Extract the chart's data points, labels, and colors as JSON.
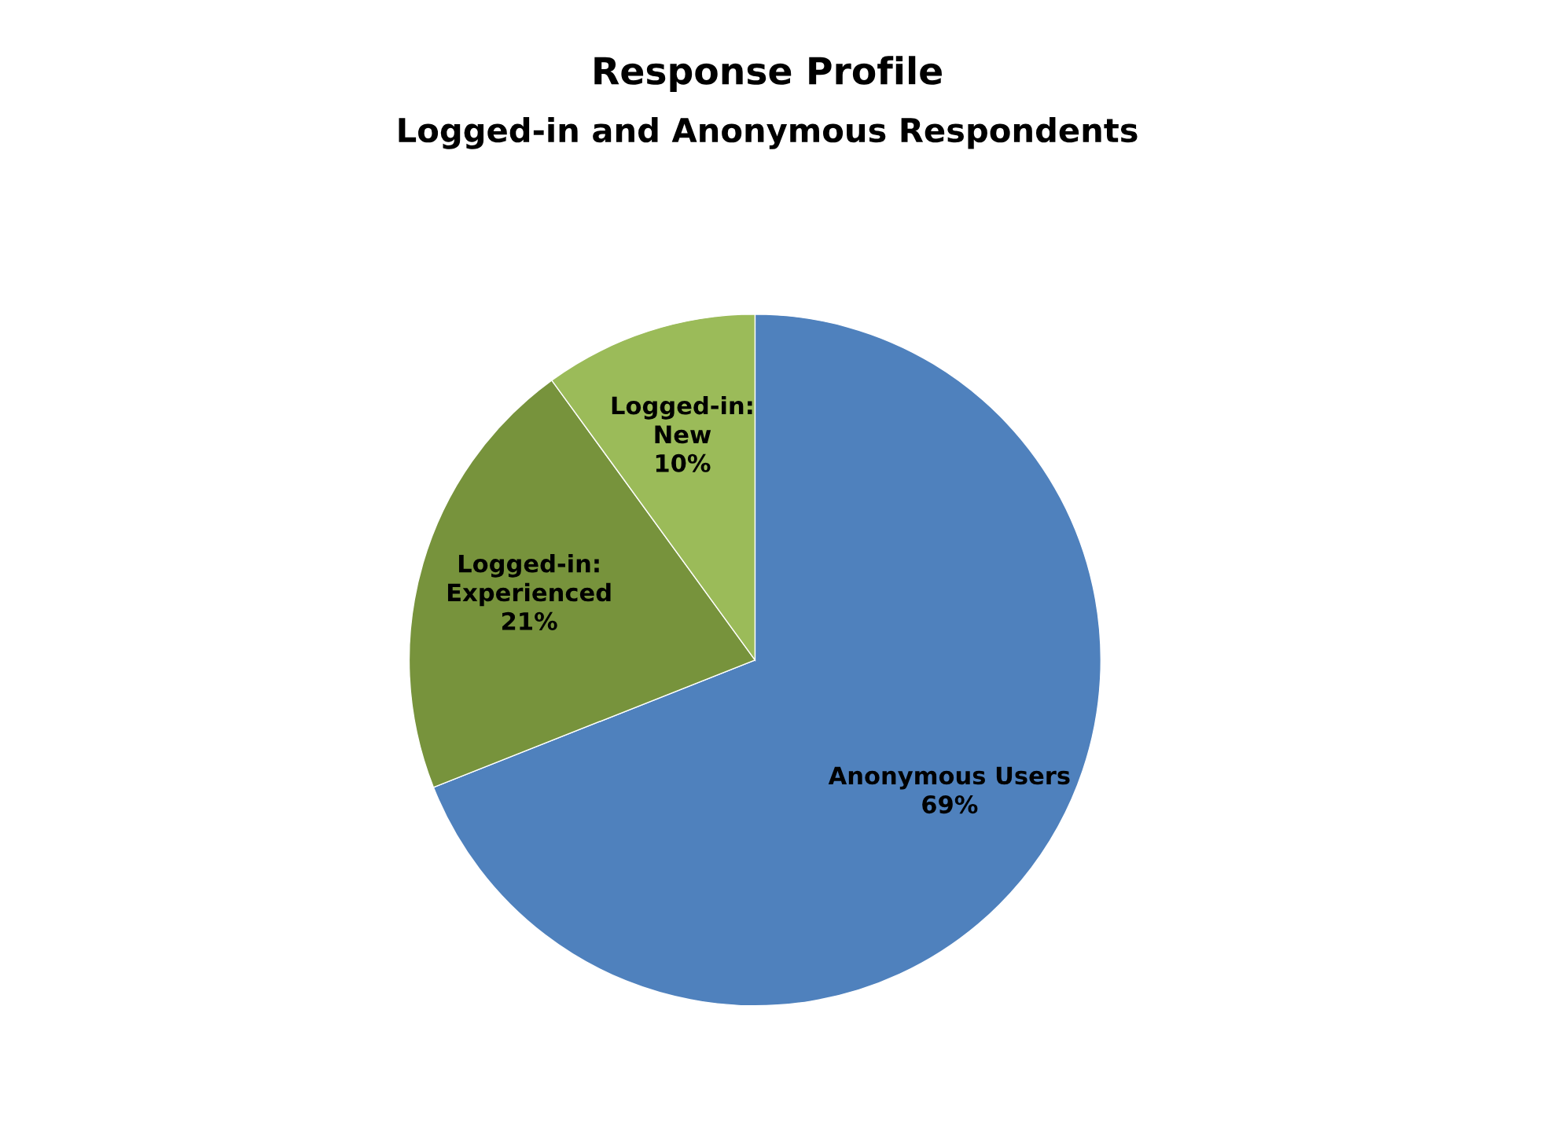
{
  "chart_data": {
    "type": "pie",
    "title": "Response Profile",
    "subtitle": "Logged-in and Anonymous Respondents",
    "categories": [
      "Anonymous Users",
      "Logged-in:\nExperienced",
      "Logged-in:\nNew"
    ],
    "values": [
      69,
      21,
      10
    ],
    "colors": [
      "#4f81bd",
      "#77933c",
      "#9bbb59"
    ],
    "value_labels": [
      "69%",
      "21%",
      "10%"
    ]
  }
}
